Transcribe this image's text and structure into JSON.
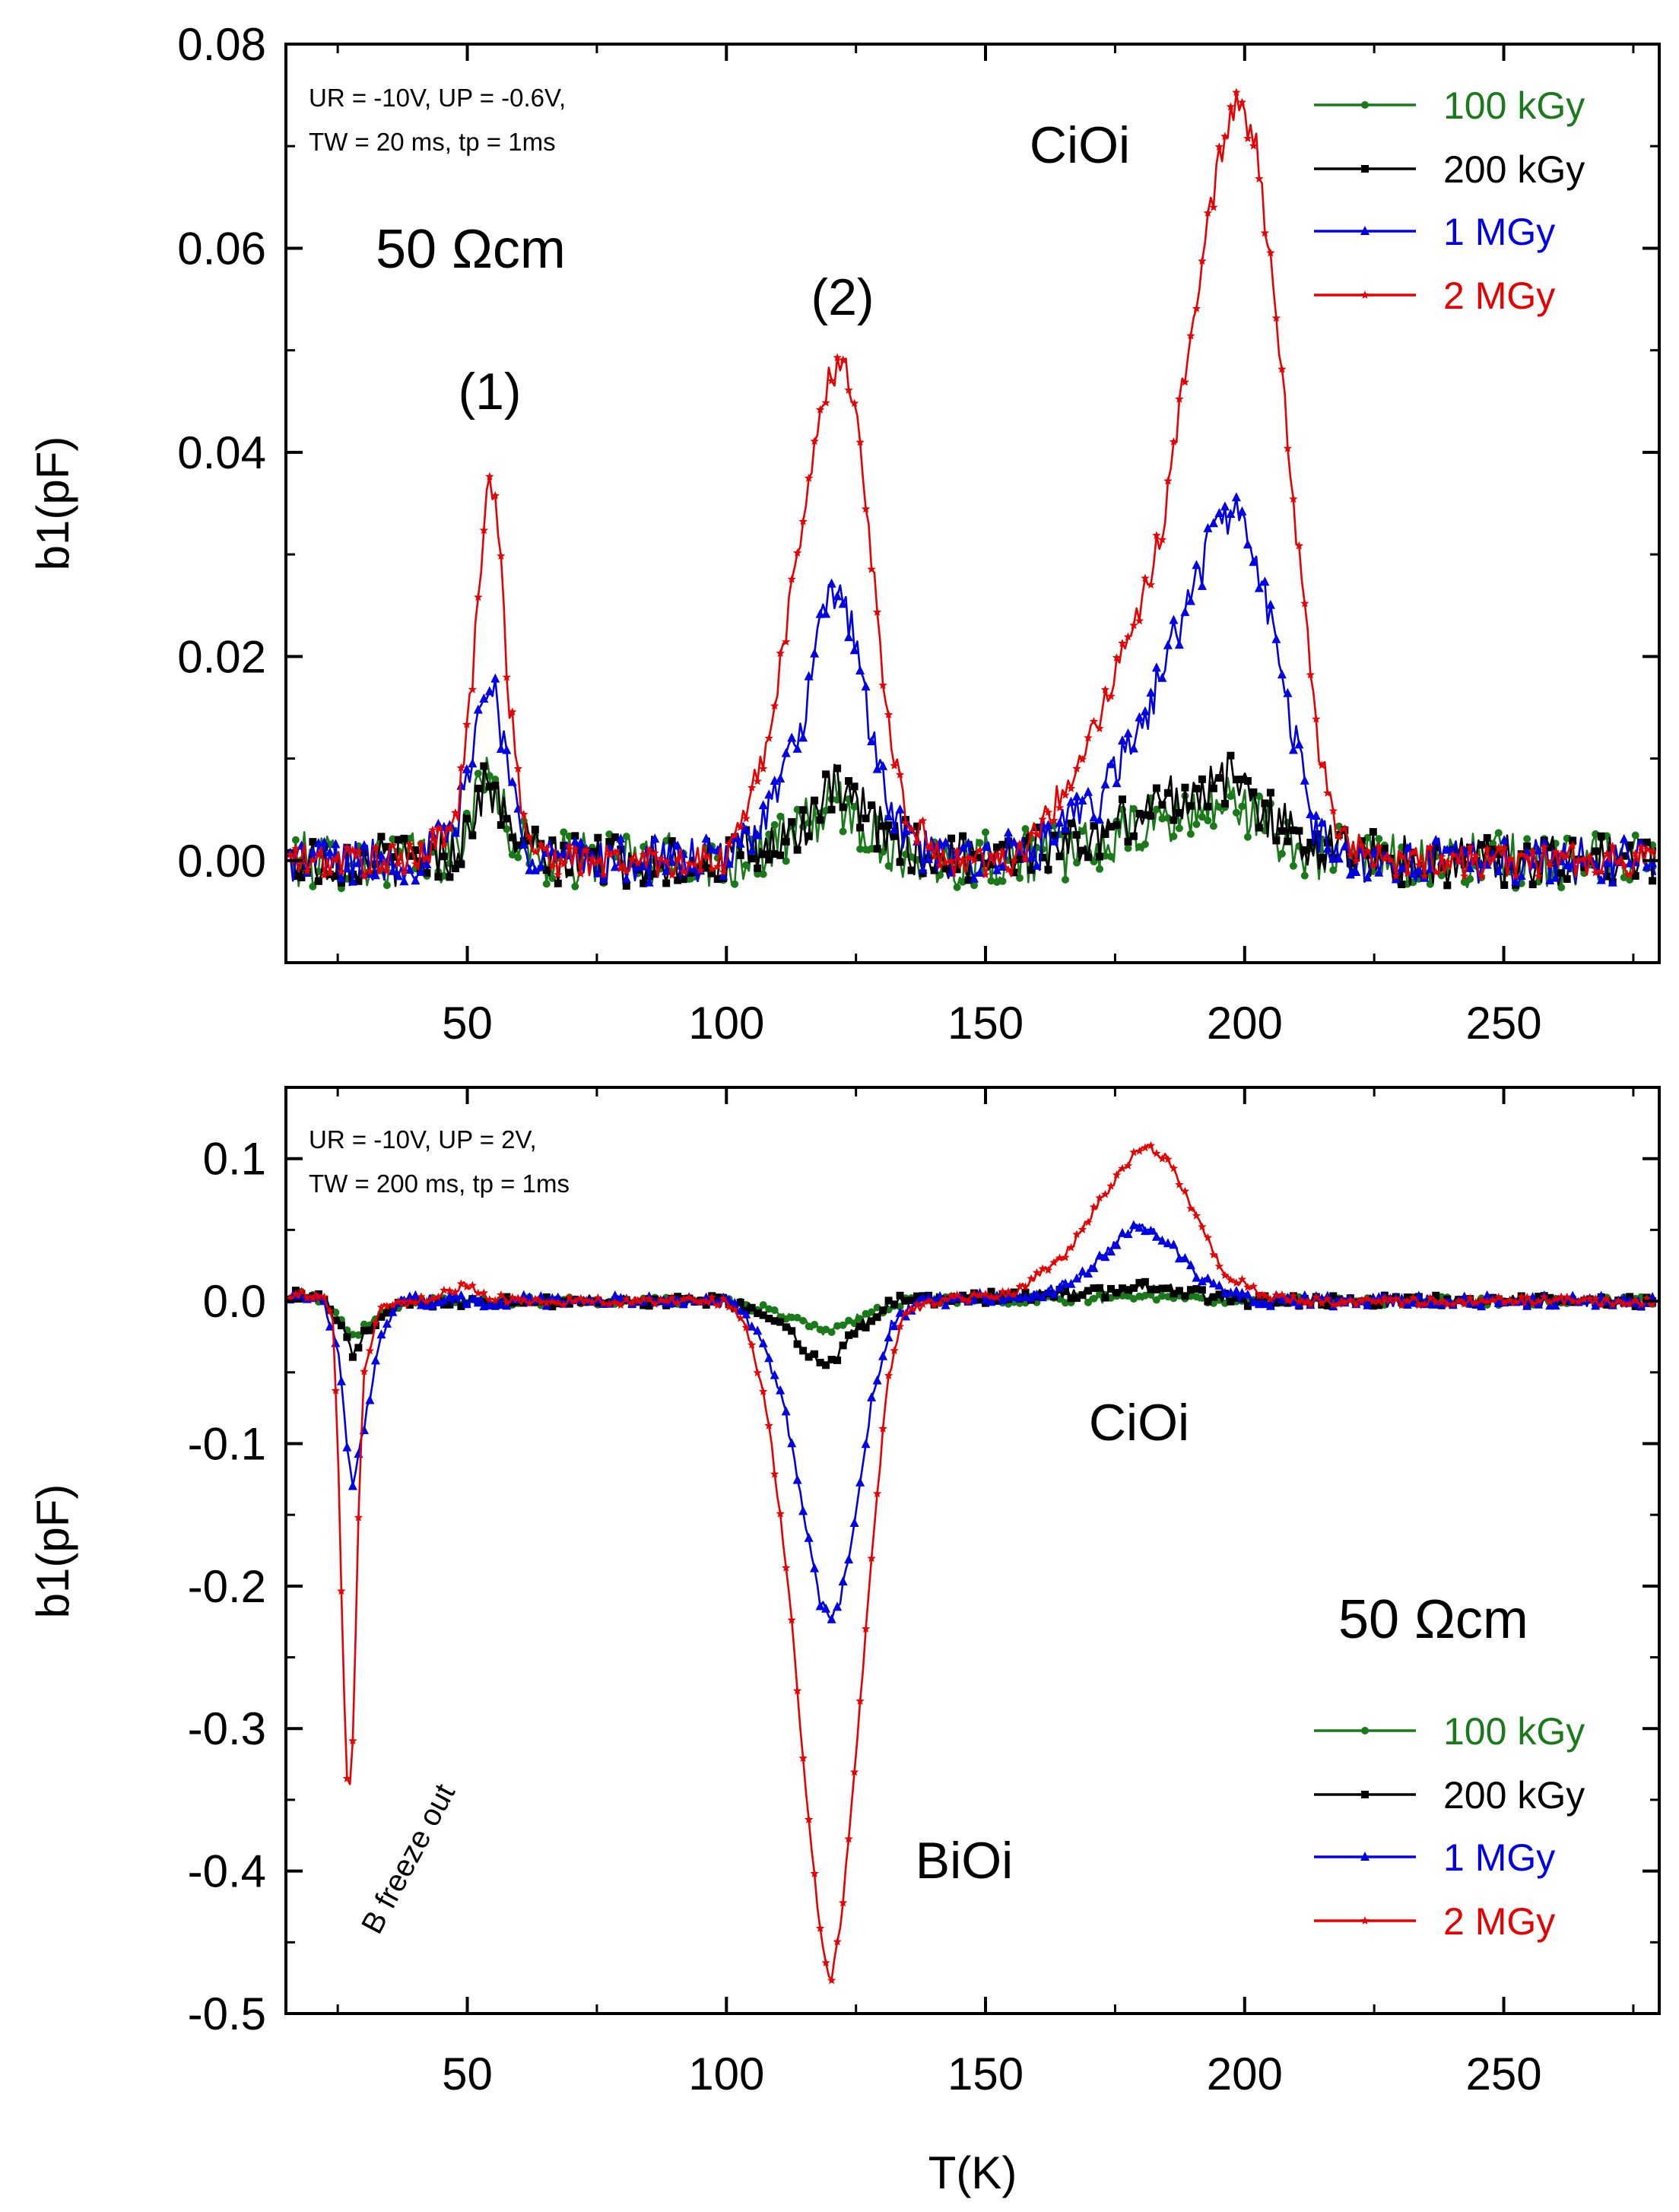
{
  "chart_data": [
    {
      "type": "line",
      "panel": "top",
      "xlabel": "",
      "ylabel": "b1(pF)",
      "xlim": [
        15,
        280
      ],
      "ylim": [
        -0.01,
        0.08
      ],
      "x_ticks": [
        "50",
        "100",
        "150",
        "200",
        "250"
      ],
      "y_ticks": [
        "0.00",
        "0.02",
        "0.04",
        "0.06",
        "0.08"
      ],
      "conditions": [
        "UR = -10V, UP = -0.6V,",
        "TW = 20 ms, tp = 1ms"
      ],
      "sample_label": "50 Ωcm",
      "annotations": {
        "peak1": "(1)",
        "peak2": "(2)",
        "ciOi": "CiOi"
      },
      "series": [
        {
          "name": "100 kGy",
          "color": "#1a7a1a",
          "marker": "circle",
          "points": [
            [
              15,
              0
            ],
            [
              40,
              0
            ],
            [
              48,
              0.001
            ],
            [
              54,
              0.009
            ],
            [
              58,
              0.003
            ],
            [
              65,
              0
            ],
            [
              100,
              0
            ],
            [
              112,
              0.002
            ],
            [
              121,
              0.006
            ],
            [
              130,
              0.002
            ],
            [
              140,
              0
            ],
            [
              170,
              0.001
            ],
            [
              185,
              0.004
            ],
            [
              198,
              0.006
            ],
            [
              210,
              0.001
            ],
            [
              230,
              0
            ],
            [
              280,
              0
            ]
          ]
        },
        {
          "name": "200 kGy",
          "color": "#000000",
          "marker": "square",
          "points": [
            [
              15,
              0
            ],
            [
              40,
              0
            ],
            [
              48,
              0.001
            ],
            [
              54,
              0.008
            ],
            [
              58,
              0.003
            ],
            [
              65,
              0
            ],
            [
              100,
              0
            ],
            [
              112,
              0.002
            ],
            [
              121,
              0.007
            ],
            [
              130,
              0.003
            ],
            [
              140,
              0
            ],
            [
              170,
              0.002
            ],
            [
              185,
              0.006
            ],
            [
              198,
              0.008
            ],
            [
              210,
              0.002
            ],
            [
              230,
              0
            ],
            [
              280,
              0
            ]
          ]
        },
        {
          "name": "1 MGy",
          "color": "#0000e6",
          "marker": "triangle",
          "points": [
            [
              15,
              0
            ],
            [
              40,
              0
            ],
            [
              48,
              0.003
            ],
            [
              52,
              0.014
            ],
            [
              55,
              0.018
            ],
            [
              58,
              0.008
            ],
            [
              62,
              0.001
            ],
            [
              70,
              0
            ],
            [
              100,
              0
            ],
            [
              108,
              0.005
            ],
            [
              114,
              0.012
            ],
            [
              118,
              0.022
            ],
            [
              121,
              0.027
            ],
            [
              125,
              0.022
            ],
            [
              128,
              0.012
            ],
            [
              132,
              0.004
            ],
            [
              140,
              0
            ],
            [
              160,
              0.001
            ],
            [
              172,
              0.006
            ],
            [
              180,
              0.013
            ],
            [
              188,
              0.024
            ],
            [
              194,
              0.032
            ],
            [
              198,
              0.035
            ],
            [
              203,
              0.028
            ],
            [
              208,
              0.016
            ],
            [
              213,
              0.004
            ],
            [
              218,
              0
            ],
            [
              280,
              0
            ]
          ]
        },
        {
          "name": "2 MGy",
          "color": "#e60000",
          "marker": "star",
          "points": [
            [
              15,
              0
            ],
            [
              40,
              0
            ],
            [
              48,
              0.004
            ],
            [
              51,
              0.018
            ],
            [
              53,
              0.032
            ],
            [
              54,
              0.039
            ],
            [
              56,
              0.033
            ],
            [
              58,
              0.016
            ],
            [
              61,
              0.003
            ],
            [
              66,
              0
            ],
            [
              100,
              0
            ],
            [
              104,
              0.005
            ],
            [
              108,
              0.012
            ],
            [
              112,
              0.024
            ],
            [
              116,
              0.038
            ],
            [
              119,
              0.046
            ],
            [
              122,
              0.049
            ],
            [
              125,
              0.045
            ],
            [
              128,
              0.03
            ],
            [
              131,
              0.014
            ],
            [
              135,
              0.004
            ],
            [
              142,
              0
            ],
            [
              155,
              0
            ],
            [
              162,
              0.004
            ],
            [
              170,
              0.012
            ],
            [
              178,
              0.022
            ],
            [
              184,
              0.032
            ],
            [
              188,
              0.046
            ],
            [
              192,
              0.06
            ],
            [
              196,
              0.071
            ],
            [
              198,
              0.074
            ],
            [
              202,
              0.071
            ],
            [
              206,
              0.054
            ],
            [
              210,
              0.032
            ],
            [
              214,
              0.012
            ],
            [
              218,
              0.003
            ],
            [
              224,
              0
            ],
            [
              280,
              0
            ]
          ]
        }
      ],
      "legend": {
        "location": "top-right",
        "entries": [
          "100 kGy",
          "200 kGy",
          "1 MGy",
          "2 MGy"
        ]
      }
    },
    {
      "type": "line",
      "panel": "bottom",
      "xlabel": "T(K)",
      "ylabel": "b1(pF)",
      "xlim": [
        15,
        280
      ],
      "ylim": [
        -0.5,
        0.15
      ],
      "x_ticks": [
        "50",
        "100",
        "150",
        "200",
        "250"
      ],
      "y_ticks": [
        "0.1",
        "0.0",
        "-0.1",
        "-0.2",
        "-0.3",
        "-0.4",
        "-0.5"
      ],
      "conditions": [
        "UR = -10V, UP = 2V,",
        "TW = 200 ms, tp = 1ms"
      ],
      "sample_label": "50 Ωcm",
      "annotations": {
        "ciOi": "CiOi",
        "biOi": "BiOi",
        "freeze": "B freeze out"
      },
      "series": [
        {
          "name": "100 kGy",
          "color": "#1a7a1a",
          "marker": "circle",
          "points": [
            [
              15,
              0.005
            ],
            [
              22,
              0.002
            ],
            [
              26,
              -0.015
            ],
            [
              28,
              -0.025
            ],
            [
              32,
              -0.012
            ],
            [
              38,
              0
            ],
            [
              100,
              0
            ],
            [
              110,
              -0.008
            ],
            [
              119,
              -0.022
            ],
            [
              128,
              -0.008
            ],
            [
              135,
              0
            ],
            [
              175,
              0.002
            ],
            [
              185,
              0.004
            ],
            [
              195,
              0
            ],
            [
              280,
              0
            ]
          ]
        },
        {
          "name": "200 kGy",
          "color": "#000000",
          "marker": "square",
          "points": [
            [
              15,
              0.005
            ],
            [
              22,
              0.002
            ],
            [
              26,
              -0.02
            ],
            [
              28,
              -0.04
            ],
            [
              31,
              -0.018
            ],
            [
              36,
              0
            ],
            [
              100,
              0
            ],
            [
              110,
              -0.012
            ],
            [
              117,
              -0.04
            ],
            [
              120,
              -0.045
            ],
            [
              125,
              -0.02
            ],
            [
              132,
              0
            ],
            [
              175,
              0.006
            ],
            [
              182,
              0.012
            ],
            [
              190,
              0.005
            ],
            [
              200,
              0
            ],
            [
              280,
              0
            ]
          ]
        },
        {
          "name": "1 MGy",
          "color": "#0000e6",
          "marker": "triangle",
          "points": [
            [
              15,
              0.005
            ],
            [
              22,
              0.002
            ],
            [
              25,
              -0.03
            ],
            [
              27,
              -0.11
            ],
            [
              28,
              -0.13
            ],
            [
              30,
              -0.09
            ],
            [
              33,
              -0.03
            ],
            [
              37,
              0
            ],
            [
              100,
              0
            ],
            [
              106,
              -0.02
            ],
            [
              111,
              -0.07
            ],
            [
              115,
              -0.15
            ],
            [
              118,
              -0.21
            ],
            [
              120,
              -0.225
            ],
            [
              122,
              -0.21
            ],
            [
              125,
              -0.15
            ],
            [
              128,
              -0.07
            ],
            [
              132,
              -0.015
            ],
            [
              137,
              0
            ],
            [
              160,
              0.003
            ],
            [
              170,
              0.02
            ],
            [
              176,
              0.045
            ],
            [
              180,
              0.055
            ],
            [
              184,
              0.045
            ],
            [
              190,
              0.02
            ],
            [
              196,
              0.005
            ],
            [
              205,
              0
            ],
            [
              280,
              0
            ]
          ]
        },
        {
          "name": "2 MGy",
          "color": "#e60000",
          "marker": "star",
          "points": [
            [
              15,
              0.005
            ],
            [
              22,
              0.003
            ],
            [
              24,
              -0.01
            ],
            [
              25,
              -0.1
            ],
            [
              26,
              -0.25
            ],
            [
              27,
              -0.36
            ],
            [
              28,
              -0.3
            ],
            [
              29,
              -0.15
            ],
            [
              30,
              -0.05
            ],
            [
              33,
              -0.005
            ],
            [
              40,
              0
            ],
            [
              48,
              0.008
            ],
            [
              50,
              0.012
            ],
            [
              53,
              0.005
            ],
            [
              58,
              0
            ],
            [
              100,
              0
            ],
            [
              104,
              -0.02
            ],
            [
              108,
              -0.08
            ],
            [
              112,
              -0.2
            ],
            [
              115,
              -0.33
            ],
            [
              118,
              -0.44
            ],
            [
              120,
              -0.48
            ],
            [
              122,
              -0.44
            ],
            [
              125,
              -0.32
            ],
            [
              128,
              -0.18
            ],
            [
              131,
              -0.06
            ],
            [
              134,
              -0.01
            ],
            [
              140,
              0
            ],
            [
              155,
              0.005
            ],
            [
              165,
              0.03
            ],
            [
              172,
              0.07
            ],
            [
              178,
              0.1
            ],
            [
              181,
              0.11
            ],
            [
              185,
              0.1
            ],
            [
              190,
              0.065
            ],
            [
              196,
              0.02
            ],
            [
              203,
              0.005
            ],
            [
              212,
              0
            ],
            [
              280,
              0
            ]
          ]
        }
      ],
      "legend": {
        "location": "bottom-right",
        "entries": [
          "100 kGy",
          "200 kGy",
          "1 MGy",
          "2 MGy"
        ]
      }
    }
  ]
}
